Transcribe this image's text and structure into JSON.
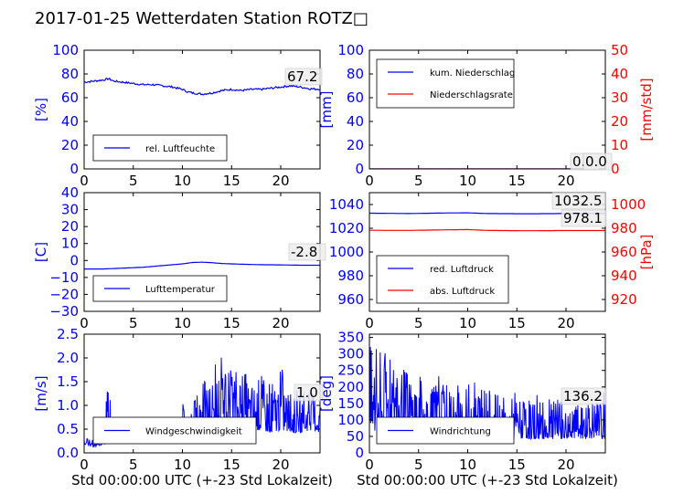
{
  "title": "2017-01-25 Wetterdaten Station ROTZ□",
  "colors": {
    "primary": "#0000ff",
    "secondary": "#ff0000",
    "text": "#000000"
  },
  "chart_data": [
    {
      "type": "line",
      "x_range": [
        0,
        24
      ],
      "xticks": [
        0,
        5,
        10,
        15,
        20
      ],
      "ylabel": "[%]",
      "ylim": [
        0,
        100
      ],
      "yticks": [
        0,
        20,
        40,
        60,
        80,
        100
      ],
      "legend": "lower-left",
      "annotations": [
        "67.2"
      ],
      "series": [
        {
          "name": "rel. Luftfeuchte",
          "color": "#0000ff",
          "x": [
            0,
            1,
            2,
            2.5,
            3,
            4,
            5,
            6,
            7,
            8,
            9,
            10,
            10.5,
            11,
            12,
            13,
            14,
            15,
            16,
            17,
            18,
            19,
            20,
            21,
            22,
            23,
            24
          ],
          "y": [
            73,
            74,
            75,
            76,
            74,
            73,
            72,
            71,
            71,
            70,
            69,
            67,
            65,
            64,
            63,
            64,
            66,
            67,
            66,
            67,
            67,
            68,
            69,
            70,
            69,
            67.5,
            67.2
          ]
        }
      ]
    },
    {
      "type": "line",
      "x_range": [
        0,
        24
      ],
      "xticks": [
        0,
        5,
        10,
        15,
        20
      ],
      "ylabel": "[mm]",
      "ylim": [
        0,
        100
      ],
      "yticks": [
        0,
        20,
        40,
        60,
        80,
        100
      ],
      "y2label": "[mm/std]",
      "y2lim": [
        0,
        50
      ],
      "y2ticks": [
        0,
        10,
        20,
        30,
        40,
        50
      ],
      "legend": "upper-left",
      "annotations": [
        "0.0",
        "0.0"
      ],
      "series": [
        {
          "name": "kum. Niederschlag",
          "color": "#0000ff",
          "axis": "left",
          "x": [
            0,
            24
          ],
          "y": [
            0,
            0
          ]
        },
        {
          "name": "Niederschlagsrate",
          "color": "#ff0000",
          "axis": "right",
          "x": [
            0,
            24
          ],
          "y": [
            0,
            0
          ]
        }
      ]
    },
    {
      "type": "line",
      "x_range": [
        0,
        24
      ],
      "xticks": [
        0,
        5,
        10,
        15,
        20
      ],
      "ylabel": "[C]",
      "ylim": [
        -30,
        40
      ],
      "yticks": [
        -30,
        -20,
        -10,
        0,
        10,
        20,
        30,
        40
      ],
      "legend": "lower-left",
      "annotations": [
        "-2.8"
      ],
      "series": [
        {
          "name": "Lufttemperatur",
          "color": "#0000ff",
          "x": [
            0,
            2,
            4,
            6,
            8,
            10,
            11,
            12,
            13,
            14,
            16,
            18,
            20,
            22,
            24
          ],
          "y": [
            -5,
            -5,
            -4.5,
            -4,
            -3,
            -2,
            -1.2,
            -1,
            -1.3,
            -1.8,
            -2.2,
            -2.5,
            -2.6,
            -2.8,
            -2.8
          ]
        }
      ]
    },
    {
      "type": "line",
      "x_range": [
        0,
        24
      ],
      "xticks": [
        0,
        5,
        10,
        15,
        20
      ],
      "ylabel": "",
      "ylim": [
        950,
        1050
      ],
      "yticks": [
        960,
        980,
        1000,
        1020,
        1040
      ],
      "y2label": "[hPa]",
      "y2lim": [
        910,
        1010
      ],
      "y2ticks": [
        920,
        940,
        960,
        980,
        1000
      ],
      "legend": "lower-left",
      "annotations": [
        "1032.5",
        "978.1"
      ],
      "series": [
        {
          "name": "red. Luftdruck",
          "color": "#0000ff",
          "axis": "left",
          "x": [
            0,
            4,
            8,
            10,
            12,
            16,
            20,
            24
          ],
          "y": [
            1032.7,
            1032.4,
            1032.9,
            1033.0,
            1032.4,
            1032.2,
            1032.4,
            1032.5
          ]
        },
        {
          "name": "abs. Luftdruck",
          "color": "#ff0000",
          "axis": "right",
          "x": [
            0,
            4,
            8,
            10,
            12,
            16,
            20,
            24
          ],
          "y": [
            978.3,
            978.2,
            978.7,
            978.9,
            978.2,
            977.9,
            978.1,
            978.1
          ]
        }
      ]
    },
    {
      "type": "line",
      "x_range": [
        0,
        24
      ],
      "xticks": [
        0,
        5,
        10,
        15,
        20
      ],
      "xlabel": "Std 00:00:00 UTC (+-23 Std Lokalzeit)",
      "ylabel": "[m/s]",
      "ylim": [
        0,
        2.5
      ],
      "yticks": [
        0.0,
        0.5,
        1.0,
        1.5,
        2.0,
        2.5
      ],
      "legend": "lower-center",
      "annotations": [
        "1.0"
      ],
      "series": [
        {
          "name": "Windgeschwindigkeit",
          "color": "#0000ff",
          "x": [
            0,
            1,
            2,
            2.5,
            3,
            4,
            5,
            6,
            7,
            8,
            9,
            10,
            11,
            12,
            13,
            14,
            15,
            16,
            17,
            18,
            19,
            20,
            21,
            22,
            23,
            24
          ],
          "y": [
            0.3,
            0.2,
            0.4,
            1.2,
            0.3,
            0.3,
            0.4,
            0.3,
            0.4,
            0.5,
            0.4,
            0.8,
            0.9,
            1.2,
            1.3,
            1.5,
            1.4,
            1.5,
            1.2,
            1.3,
            1.1,
            1.4,
            1.0,
            0.9,
            1.1,
            1.0
          ],
          "band": [
            0.3,
            0.2,
            0.3,
            0.4,
            0.4,
            0.4,
            0.5,
            0.5,
            0.6,
            0.7,
            0.7,
            0.7,
            0.7,
            0.8,
            0.8,
            0.9,
            0.9,
            0.9,
            0.8,
            0.8,
            0.7,
            0.8,
            0.7,
            0.7,
            0.8,
            0.7
          ]
        }
      ]
    },
    {
      "type": "line",
      "x_range": [
        0,
        24
      ],
      "xticks": [
        0,
        5,
        10,
        15,
        20
      ],
      "xlabel": "Std 00:00:00 UTC (+-23 Std Lokalzeit)",
      "ylabel": "[deg]",
      "ylim": [
        0,
        360
      ],
      "yticks": [
        0,
        50,
        100,
        150,
        200,
        250,
        300,
        350
      ],
      "legend": "lower-center",
      "annotations": [
        "136.2"
      ],
      "series": [
        {
          "name": "Windrichtung",
          "color": "#0000ff",
          "x": [
            0,
            1,
            2,
            3,
            4,
            5,
            6,
            7,
            8,
            9,
            10,
            11,
            12,
            13,
            14,
            15,
            16,
            17,
            18,
            19,
            20,
            21,
            22,
            23,
            24
          ],
          "y": [
            240,
            250,
            230,
            210,
            200,
            190,
            170,
            175,
            160,
            150,
            170,
            180,
            150,
            140,
            130,
            135,
            125,
            130,
            120,
            125,
            110,
            115,
            120,
            130,
            136
          ],
          "band": [
            90,
            110,
            110,
            100,
            100,
            90,
            80,
            80,
            80,
            80,
            80,
            80,
            70,
            70,
            70,
            70,
            70,
            70,
            70,
            70,
            70,
            70,
            70,
            70,
            70
          ]
        }
      ]
    }
  ]
}
